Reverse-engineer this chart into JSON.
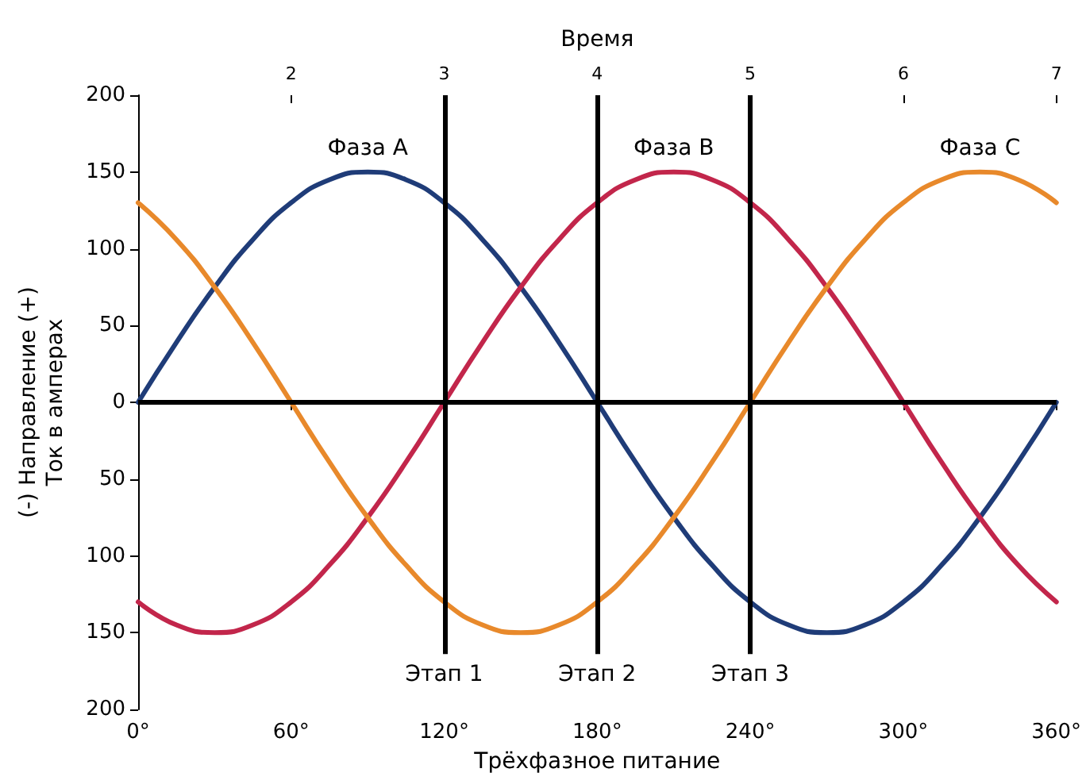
{
  "chart_data": {
    "type": "line",
    "xlabel": "Трёхфазное питание",
    "x2label": "Время",
    "ylabel": "(-) Направление (+)\nТок в амперах",
    "x": [
      0,
      15,
      30,
      45,
      60,
      75,
      90,
      105,
      120,
      135,
      150,
      165,
      180,
      195,
      210,
      225,
      240,
      255,
      270,
      285,
      300,
      315,
      330,
      345,
      360
    ],
    "series": [
      {
        "name": "Фаза A",
        "color": "#1f3c78",
        "values": [
          0,
          39,
          75,
          106,
          130,
          145,
          150,
          145,
          130,
          106,
          75,
          39,
          0,
          -39,
          -75,
          -106,
          -130,
          -145,
          -150,
          -145,
          -130,
          -106,
          -75,
          -39,
          0
        ]
      },
      {
        "name": "Фаза B",
        "color": "#c2264b",
        "values": [
          -130,
          -145,
          -150,
          -145,
          -130,
          -106,
          -75,
          -39,
          0,
          39,
          75,
          106,
          130,
          145,
          150,
          145,
          130,
          106,
          75,
          39,
          0,
          -39,
          -75,
          -106,
          -130
        ]
      },
      {
        "name": "Фаза C",
        "color": "#e8892b",
        "values": [
          130,
          106,
          75,
          39,
          0,
          -39,
          -75,
          -106,
          -130,
          -145,
          -150,
          -145,
          -130,
          -106,
          -75,
          -39,
          0,
          39,
          75,
          106,
          130,
          145,
          150,
          145,
          130
        ]
      }
    ],
    "xlim": [
      0,
      360
    ],
    "xticks": [
      {
        "value": 0,
        "label": "0°"
      },
      {
        "value": 60,
        "label": "60°"
      },
      {
        "value": 120,
        "label": "120°"
      },
      {
        "value": 180,
        "label": "180°"
      },
      {
        "value": 240,
        "label": "240°"
      },
      {
        "value": 300,
        "label": "300°"
      },
      {
        "value": 360,
        "label": "360°"
      }
    ],
    "x2lim": [
      1,
      7
    ],
    "x2ticks": [
      2,
      3,
      4,
      5,
      6,
      7
    ],
    "ylim": [
      -200,
      200
    ],
    "yticks": [
      {
        "value": -200,
        "label": "200"
      },
      {
        "value": -150,
        "label": "150"
      },
      {
        "value": -100,
        "label": "100"
      },
      {
        "value": -50,
        "label": "50"
      },
      0,
      50,
      100,
      150,
      200
    ],
    "ref_lines": [
      {
        "axis": "y",
        "value": 0,
        "color": "#000000"
      },
      {
        "axis": "x",
        "value": 120,
        "label": "Этап 1",
        "color": "#000000"
      },
      {
        "axis": "x",
        "value": 180,
        "label": "Этап 2",
        "color": "#000000"
      },
      {
        "axis": "x",
        "value": 240,
        "label": "Этап 3",
        "color": "#000000"
      }
    ],
    "grid": false,
    "marker": "none",
    "line_style": "solid"
  }
}
